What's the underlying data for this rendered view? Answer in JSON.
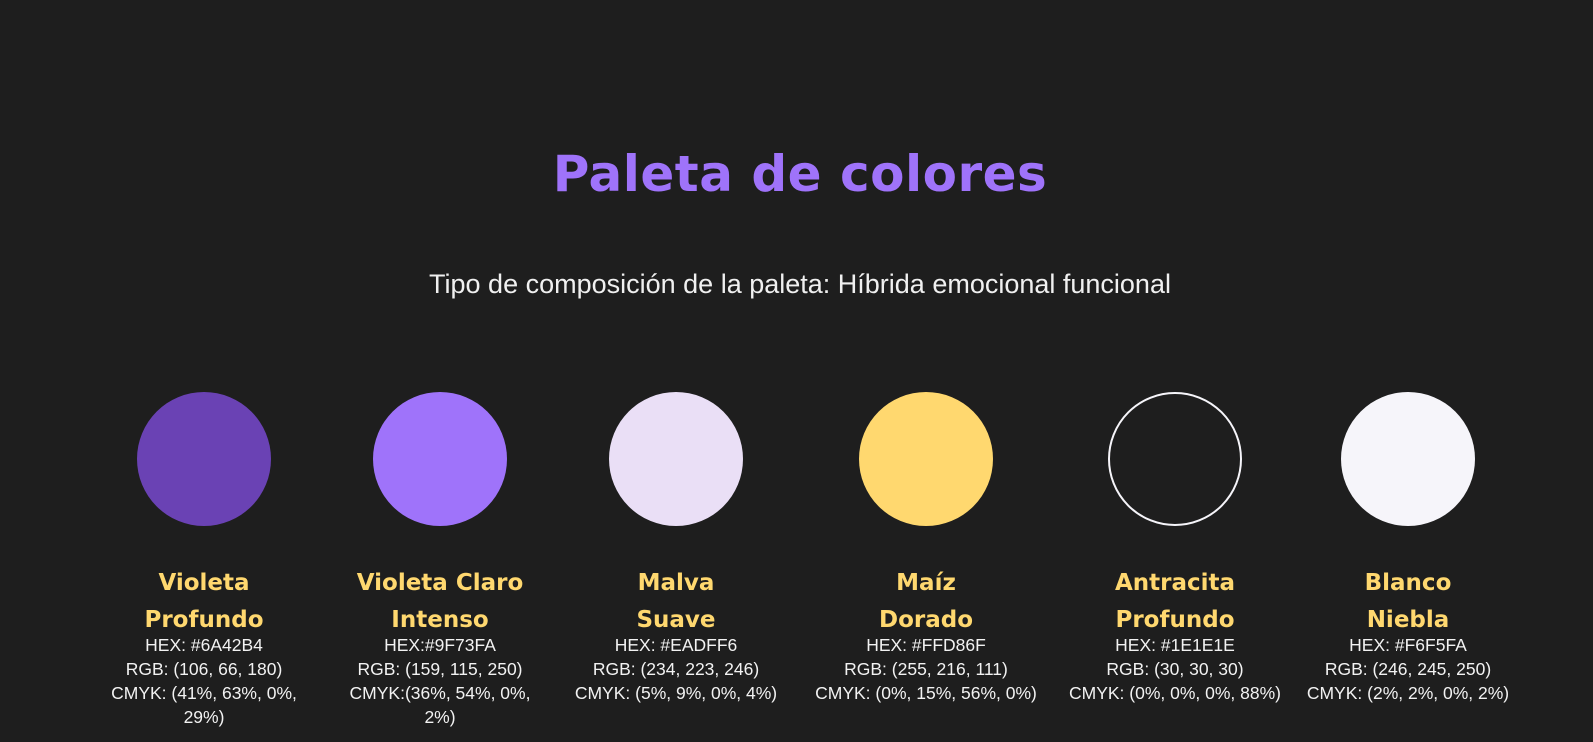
{
  "page": {
    "title": "Paleta de colores",
    "subtitle": "Tipo de composición de la paleta: Híbrida emocional funcional"
  },
  "colors": [
    {
      "name_line1": "Violeta",
      "name_line2": "Profundo",
      "hex": "HEX: #6A42B4",
      "rgb": "RGB: (106, 66, 180)",
      "cmyk": "CMYK: (41%, 63%, 0%, 29%)",
      "swatch": "#6a42b4"
    },
    {
      "name_line1": "Violeta Claro",
      "name_line2": "Intenso",
      "hex": "HEX:#9F73FA",
      "rgb": "RGB: (159, 115, 250)",
      "cmyk": "CMYK:(36%, 54%, 0%, 2%)",
      "swatch": "#9f73fa"
    },
    {
      "name_line1": "Malva",
      "name_line2": "Suave",
      "hex": "HEX: #EADFF6",
      "rgb": "RGB: (234, 223, 246)",
      "cmyk": "CMYK: (5%, 9%, 0%, 4%)",
      "swatch": "#eadff6"
    },
    {
      "name_line1": "Maíz",
      "name_line2": "Dorado",
      "hex": "HEX: #FFD86F",
      "rgb": "RGB: (255, 216, 111)",
      "cmyk": "CMYK: (0%, 15%, 56%, 0%)",
      "swatch": "#ffd86f"
    },
    {
      "name_line1": "Antracita",
      "name_line2": "Profundo",
      "hex": "HEX: #1E1E1E",
      "rgb": "RGB: (30, 30, 30)",
      "cmyk": "CMYK: (0%, 0%, 0%, 88%)",
      "swatch": "#1e1e1e"
    },
    {
      "name_line1": "Blanco",
      "name_line2": "Niebla",
      "hex": "HEX: #F6F5FA",
      "rgb": "RGB: (246, 245, 250)",
      "cmyk": "CMYK: (2%, 2%, 0%, 2%)",
      "swatch": "#f6f5fa"
    }
  ],
  "theme": {
    "background": "#1e1e1e",
    "title_color": "#9f73fa",
    "name_color": "#ffd86f",
    "text_color": "#f2f2f2"
  }
}
